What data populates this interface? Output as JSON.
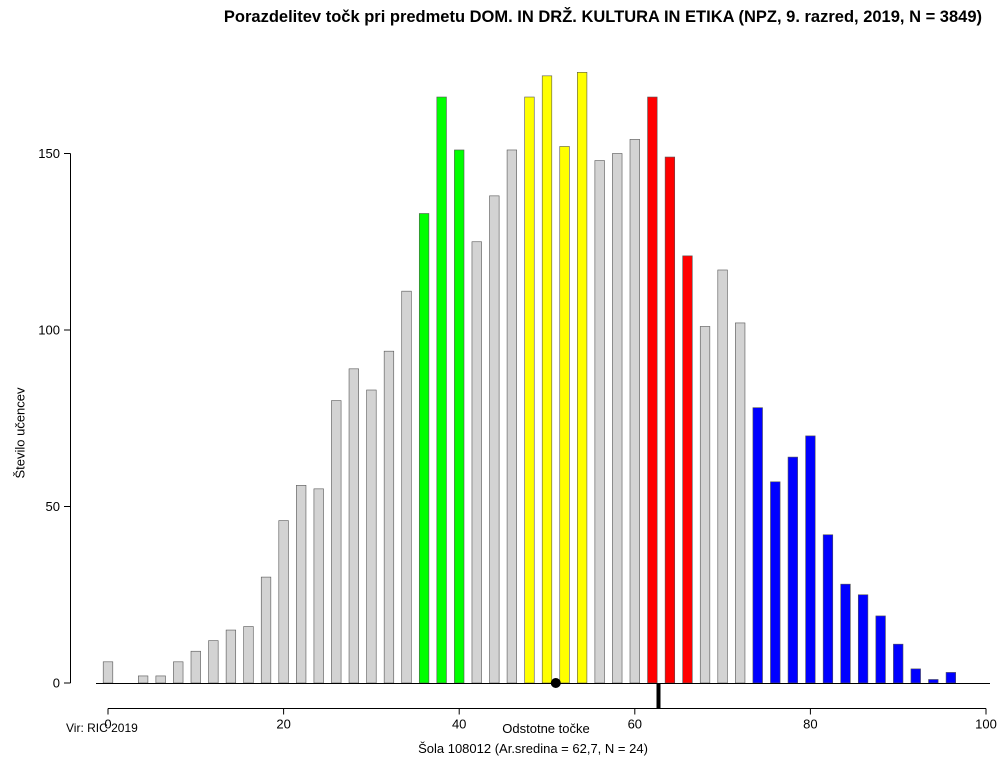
{
  "chart_data": {
    "type": "bar",
    "title": "Porazdelitev točk pri predmetu DOM. IN DRŽ. KULTURA IN ETIKA (NPZ, 9. razred, 2019, N = 3849)",
    "xlabel": "Odstotne točke",
    "ylabel": "Število učencev",
    "xlim": [
      0,
      100
    ],
    "ylim": [
      0,
      175
    ],
    "xticks": [
      "0",
      "20",
      "40",
      "60",
      "80",
      "100"
    ],
    "yticks": [
      "0",
      "50",
      "100",
      "150"
    ],
    "x": [
      0,
      2,
      4,
      6,
      8,
      10,
      12,
      14,
      16,
      18,
      20,
      22,
      24,
      26,
      28,
      30,
      32,
      34,
      36,
      38,
      40,
      42,
      44,
      46,
      48,
      50,
      52,
      54,
      56,
      58,
      60,
      62,
      64,
      66,
      68,
      70,
      72,
      74,
      76,
      78,
      80,
      82,
      84,
      86,
      88,
      90,
      92,
      94,
      96
    ],
    "values": [
      6,
      0,
      2,
      2,
      6,
      9,
      12,
      15,
      16,
      30,
      46,
      56,
      55,
      80,
      89,
      83,
      94,
      111,
      133,
      166,
      151,
      125,
      138,
      151,
      166,
      172,
      152,
      173,
      148,
      150,
      154,
      166,
      149,
      121,
      101,
      117,
      102,
      78,
      57,
      64,
      70,
      42,
      28,
      25,
      19,
      11,
      4,
      1,
      3
    ],
    "bar_colors": [
      "#d3d3d3",
      "#d3d3d3",
      "#d3d3d3",
      "#d3d3d3",
      "#d3d3d3",
      "#d3d3d3",
      "#d3d3d3",
      "#d3d3d3",
      "#d3d3d3",
      "#d3d3d3",
      "#d3d3d3",
      "#d3d3d3",
      "#d3d3d3",
      "#d3d3d3",
      "#d3d3d3",
      "#d3d3d3",
      "#d3d3d3",
      "#d3d3d3",
      "#00ff00",
      "#00ff00",
      "#00ff00",
      "#d3d3d3",
      "#d3d3d3",
      "#d3d3d3",
      "#ffff00",
      "#ffff00",
      "#ffff00",
      "#ffff00",
      "#d3d3d3",
      "#d3d3d3",
      "#d3d3d3",
      "#ff0000",
      "#ff0000",
      "#ff0000",
      "#d3d3d3",
      "#d3d3d3",
      "#d3d3d3",
      "#0000ff",
      "#0000ff",
      "#0000ff",
      "#0000ff",
      "#0000ff",
      "#0000ff",
      "#0000ff",
      "#0000ff",
      "#0000ff",
      "#0000ff",
      "#0000ff",
      "#0000ff"
    ],
    "national_mean_marker": 51,
    "school_mean_marker": 62.7,
    "source": "Vir: RIC 2019",
    "school_caption": "Šola 108012 (Ar.sredina = 62,7, N = 24)",
    "grid": false
  }
}
